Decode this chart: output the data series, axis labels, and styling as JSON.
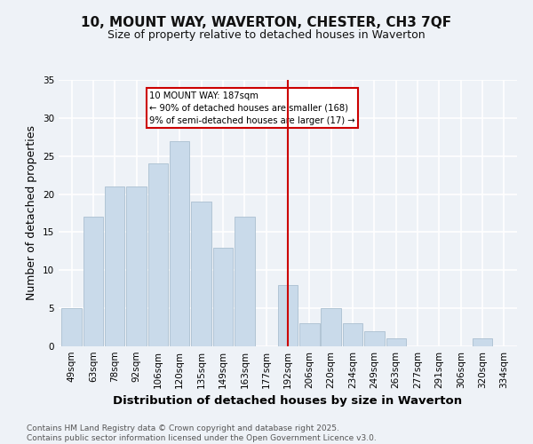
{
  "title": "10, MOUNT WAY, WAVERTON, CHESTER, CH3 7QF",
  "subtitle": "Size of property relative to detached houses in Waverton",
  "xlabel": "Distribution of detached houses by size in Waverton",
  "ylabel": "Number of detached properties",
  "categories": [
    "49sqm",
    "63sqm",
    "78sqm",
    "92sqm",
    "106sqm",
    "120sqm",
    "135sqm",
    "149sqm",
    "163sqm",
    "177sqm",
    "192sqm",
    "206sqm",
    "220sqm",
    "234sqm",
    "249sqm",
    "263sqm",
    "277sqm",
    "291sqm",
    "306sqm",
    "320sqm",
    "334sqm"
  ],
  "values": [
    5,
    17,
    21,
    21,
    24,
    27,
    19,
    13,
    17,
    0,
    8,
    3,
    5,
    3,
    2,
    1,
    0,
    0,
    0,
    1,
    0
  ],
  "bar_color": "#c9daea",
  "bar_edge_color": "#aabfd0",
  "vline_x": 10,
  "annotation_line1": "10 MOUNT WAY: 187sqm",
  "annotation_line2": "← 90% of detached houses are smaller (168)",
  "annotation_line3": "9% of semi-detached houses are larger (17) →",
  "annotation_box_color": "#ffffff",
  "annotation_box_edge": "#cc0000",
  "vline_color": "#cc0000",
  "ylim": [
    0,
    35
  ],
  "yticks": [
    0,
    5,
    10,
    15,
    20,
    25,
    30,
    35
  ],
  "footer": "Contains HM Land Registry data © Crown copyright and database right 2025.\nContains public sector information licensed under the Open Government Licence v3.0.",
  "bg_color": "#eef2f7",
  "grid_color": "#ffffff",
  "title_fontsize": 11,
  "subtitle_fontsize": 9,
  "axis_label_fontsize": 9,
  "tick_fontsize": 7.5,
  "footer_fontsize": 6.5
}
